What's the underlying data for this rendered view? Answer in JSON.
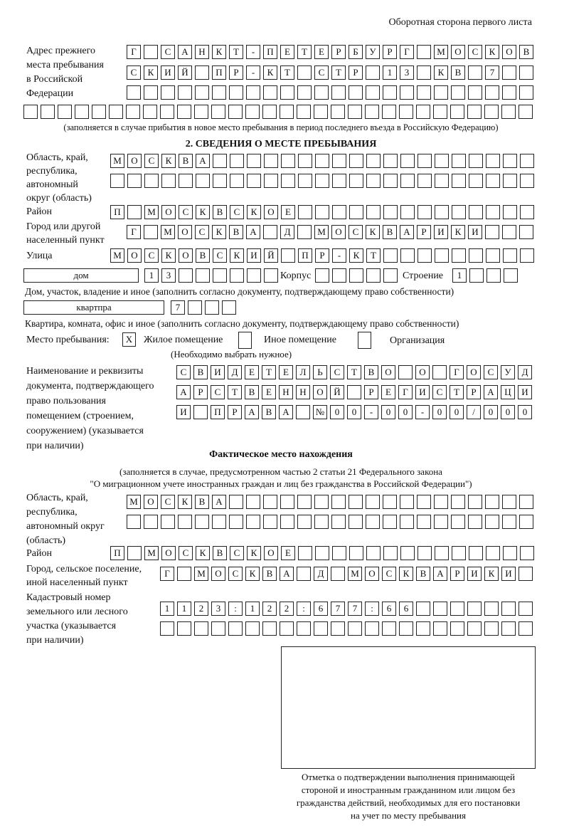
{
  "header": "Оборотная сторона первого листа",
  "prev_address": {
    "label": [
      "Адрес прежнего",
      "места пребывания",
      "в Российской",
      "Федерации"
    ],
    "rows": [
      [
        "Г",
        "",
        "С",
        "А",
        "Н",
        "К",
        "Т",
        "-",
        "П",
        "Е",
        "Т",
        "Е",
        "Р",
        "Б",
        "У",
        "Р",
        "Г",
        "",
        "М",
        "О",
        "С",
        "К",
        "О",
        "В"
      ],
      [
        "С",
        "К",
        "И",
        "Й",
        "",
        "П",
        "Р",
        "-",
        "К",
        "Т",
        "",
        "С",
        "Т",
        "Р",
        "",
        "1",
        "3",
        "",
        "К",
        "В",
        "",
        "7",
        "",
        ""
      ],
      [
        "",
        "",
        "",
        "",
        "",
        "",
        "",
        "",
        "",
        "",
        "",
        "",
        "",
        "",
        "",
        "",
        "",
        "",
        "",
        "",
        "",
        "",
        "",
        ""
      ],
      [
        "",
        "",
        "",
        "",
        "",
        "",
        "",
        "",
        "",
        "",
        "",
        "",
        "",
        "",
        "",
        "",
        "",
        "",
        "",
        "",
        "",
        "",
        "",
        "",
        "",
        "",
        "",
        "",
        "",
        ""
      ]
    ],
    "note": "(заполняется в случае прибытия в новое место пребывания в период последнего въезда в Российскую Федерацию)"
  },
  "section2": {
    "title": "2. СВЕДЕНИЯ О МЕСТЕ ПРЕБЫВАНИЯ",
    "region_label": [
      "Область, край,",
      "республика,",
      "автономный",
      "округ (область)"
    ],
    "region_rows": [
      [
        "М",
        "О",
        "С",
        "К",
        "В",
        "А",
        "",
        "",
        "",
        "",
        "",
        "",
        "",
        "",
        "",
        "",
        "",
        "",
        "",
        "",
        "",
        "",
        "",
        "",
        ""
      ],
      [
        "",
        "",
        "",
        "",
        "",
        "",
        "",
        "",
        "",
        "",
        "",
        "",
        "",
        "",
        "",
        "",
        "",
        "",
        "",
        "",
        "",
        "",
        "",
        "",
        ""
      ]
    ],
    "district_label": "Район",
    "district": [
      "П",
      "",
      "М",
      "О",
      "С",
      "К",
      "В",
      "С",
      "К",
      "О",
      "Е",
      "",
      "",
      "",
      "",
      "",
      "",
      "",
      "",
      "",
      "",
      "",
      "",
      "",
      ""
    ],
    "city_label": [
      "Город или другой",
      "населенный пункт"
    ],
    "city": [
      "Г",
      "",
      "М",
      "О",
      "С",
      "К",
      "В",
      "А",
      "",
      "Д",
      "",
      "М",
      "О",
      "С",
      "К",
      "В",
      "А",
      "Р",
      "И",
      "К",
      "И",
      "",
      "",
      ""
    ],
    "street_label": "Улица",
    "street": [
      "М",
      "О",
      "С",
      "К",
      "О",
      "В",
      "С",
      "К",
      "И",
      "Й",
      "",
      "П",
      "Р",
      "-",
      "К",
      "Т",
      "",
      "",
      "",
      "",
      "",
      "",
      "",
      "",
      ""
    ],
    "house_type": "дом",
    "house": [
      "1",
      "3",
      "",
      "",
      "",
      "",
      "",
      ""
    ],
    "korpus_label": "Корпус",
    "korpus": [
      "",
      "",
      "",
      "",
      ""
    ],
    "building_label": "Строение",
    "building": [
      "1",
      "",
      "",
      ""
    ],
    "house_note": "Дом, участок, владение и иное (заполнить согласно документу, подтверждающему право собственности)",
    "apt_type": "квартпра",
    "apt": [
      "7",
      "",
      "",
      ""
    ],
    "apt_note": "Квартира, комната, офис и иное (заполнить согласно документу, подтверждающему право собственности)",
    "stay_label": "Место пребывания:",
    "stay_options": [
      {
        "label": "Жилое помещение",
        "mark": "X"
      },
      {
        "label": "Иное помещение",
        "mark": ""
      },
      {
        "label": "Организация",
        "mark": ""
      }
    ],
    "stay_note": "(Необходимо выбрать нужное)",
    "doc_label": [
      "Наименование и реквизиты",
      "документа, подтверждающего",
      "право пользования",
      "помещением (строением,",
      "сооружением) (указывается",
      "при наличии)"
    ],
    "doc_rows": [
      [
        "С",
        "В",
        "И",
        "Д",
        "Е",
        "Т",
        "Е",
        "Л",
        "Ь",
        "С",
        "Т",
        "В",
        "О",
        "",
        "О",
        "",
        "Г",
        "О",
        "С",
        "У",
        "Д"
      ],
      [
        "А",
        "Р",
        "С",
        "Т",
        "В",
        "Е",
        "Н",
        "Н",
        "О",
        "Й",
        "",
        "Р",
        "Е",
        "Г",
        "И",
        "С",
        "Т",
        "Р",
        "А",
        "Ц",
        "И"
      ],
      [
        "И",
        "",
        "П",
        "Р",
        "А",
        "В",
        "А",
        "",
        "№",
        "0",
        "0",
        "-",
        "0",
        "0",
        "-",
        "0",
        "0",
        "/",
        "0",
        "0",
        "0"
      ]
    ]
  },
  "actual": {
    "title": "Фактическое место нахождения",
    "note": [
      "(заполняется в случае, предусмотренном частью 2 статьи 21 Федерального закона",
      "\"О миграционном учете иностранных граждан и лиц без гражданства в Российской Федерации\")"
    ],
    "region_label": [
      "Область, край,",
      "республика,",
      "автономный округ",
      "(область)"
    ],
    "region_rows": [
      [
        "М",
        "О",
        "С",
        "К",
        "В",
        "А",
        "",
        "",
        "",
        "",
        "",
        "",
        "",
        "",
        "",
        "",
        "",
        "",
        "",
        "",
        "",
        "",
        "",
        ""
      ],
      [
        "",
        "",
        "",
        "",
        "",
        "",
        "",
        "",
        "",
        "",
        "",
        "",
        "",
        "",
        "",
        "",
        "",
        "",
        "",
        "",
        "",
        "",
        "",
        ""
      ]
    ],
    "district_label": "Район",
    "district": [
      "П",
      "",
      "М",
      "О",
      "С",
      "К",
      "В",
      "С",
      "К",
      "О",
      "Е",
      "",
      "",
      "",
      "",
      "",
      "",
      "",
      "",
      "",
      "",
      "",
      "",
      "",
      ""
    ],
    "city_label": [
      "Город, сельское поселение,",
      "иной населенный пункт"
    ],
    "city": [
      "Г",
      "",
      "М",
      "О",
      "С",
      "К",
      "В",
      "А",
      "",
      "Д",
      "",
      "М",
      "О",
      "С",
      "К",
      "В",
      "А",
      "Р",
      "И",
      "К",
      "И",
      ""
    ],
    "cadastral_label": [
      "Кадастровый номер",
      "земельного или лесного",
      "участка (указывается",
      "при наличии)"
    ],
    "cadastral_rows": [
      [
        "1",
        "1",
        "2",
        "3",
        ":",
        "1",
        "2",
        "2",
        ":",
        "6",
        "7",
        "7",
        ":",
        "6",
        "6",
        "",
        "",
        "",
        "",
        "",
        "",
        ""
      ],
      [
        "",
        "",
        "",
        "",
        "",
        "",
        "",
        "",
        "",
        "",
        "",
        "",
        "",
        "",
        "",
        "",
        "",
        "",
        "",
        "",
        "",
        ""
      ]
    ]
  },
  "stamp_caption": [
    "Отметка о подтверждении выполнения принимающей",
    "стороной и иностранным гражданином или лицом без",
    "гражданства действий, необходимых для его постановки",
    "на учет по месту пребывания"
  ]
}
